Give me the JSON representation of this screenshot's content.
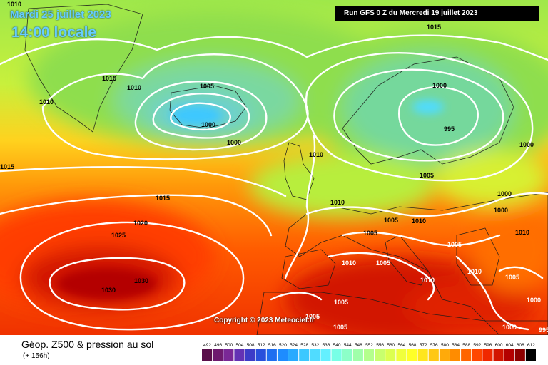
{
  "header": {
    "valid_date": "Mardi 25 juillet 2023",
    "valid_time": "14:00 locale",
    "run_info": "Run GFS 0 Z du Mercredi 19 juillet 2023"
  },
  "footer": {
    "title": "Géop. Z500 & pression au sol",
    "forecast_hours": "(+ 156h)",
    "copyright": "Copyright © 2023 Meteociel.fr"
  },
  "legend": {
    "values": [
      "492",
      "496",
      "500",
      "504",
      "508",
      "512",
      "516",
      "520",
      "524",
      "528",
      "532",
      "536",
      "540",
      "544",
      "548",
      "552",
      "556",
      "560",
      "564",
      "568",
      "572",
      "576",
      "580",
      "584",
      "588",
      "592",
      "596",
      "600",
      "604",
      "608",
      "612"
    ],
    "colors": [
      "#5a0f4a",
      "#6e1a6e",
      "#7a2896",
      "#6432b4",
      "#3c3cc8",
      "#2850dc",
      "#1e6ef0",
      "#1e8cff",
      "#28aaff",
      "#3cc8ff",
      "#50dcff",
      "#64f0ff",
      "#78ffe6",
      "#8cffc8",
      "#a0ffaa",
      "#b4ff8c",
      "#c8ff6e",
      "#dcff50",
      "#f0ff3c",
      "#ffff28",
      "#ffe61e",
      "#ffc814",
      "#ffaa0a",
      "#ff8c00",
      "#ff6400",
      "#ff4600",
      "#f02800",
      "#d21400",
      "#b40000",
      "#8c0000",
      "#000000"
    ]
  },
  "isobar_labels": [
    {
      "text": "1010"
    },
    {
      "text": "1015"
    },
    {
      "text": "1010"
    },
    {
      "text": "1010"
    },
    {
      "text": "1005"
    },
    {
      "text": "1000"
    },
    {
      "text": "1000"
    },
    {
      "text": "1015"
    },
    {
      "text": "1000"
    },
    {
      "text": "995"
    },
    {
      "text": "1000"
    },
    {
      "text": "1010"
    },
    {
      "text": "1005"
    },
    {
      "text": "1015"
    },
    {
      "text": "1015"
    },
    {
      "text": "1020"
    },
    {
      "text": "1025"
    },
    {
      "text": "1030"
    },
    {
      "text": "1030"
    },
    {
      "text": "1010"
    },
    {
      "text": "1005"
    },
    {
      "text": "1010"
    },
    {
      "text": "1000"
    },
    {
      "text": "1000"
    },
    {
      "text": "1010"
    },
    {
      "text": "1005"
    },
    {
      "text": "1005"
    },
    {
      "text": "1010"
    },
    {
      "text": "1005"
    },
    {
      "text": "1010"
    },
    {
      "text": "1010"
    },
    {
      "text": "1005"
    },
    {
      "text": "1005"
    },
    {
      "text": "1000"
    },
    {
      "text": "1005"
    },
    {
      "text": "1005"
    },
    {
      "text": "1000"
    },
    {
      "text": "995"
    }
  ]
}
